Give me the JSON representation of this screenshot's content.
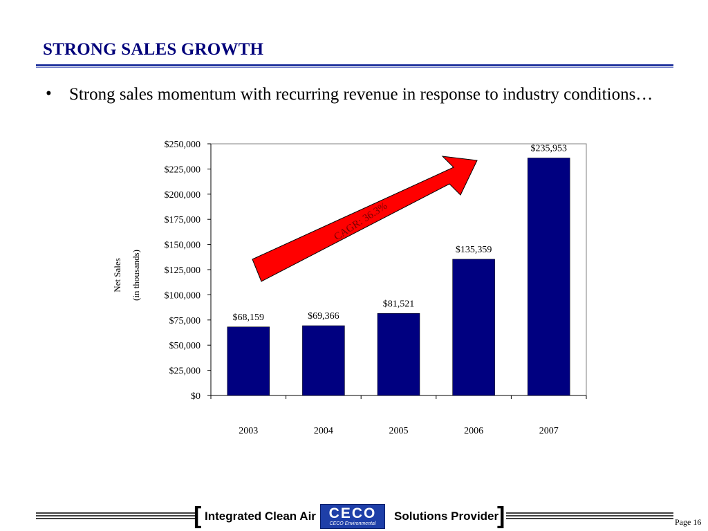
{
  "slide": {
    "title": "STRONG SALES GROWTH",
    "bullet": "Strong sales momentum with recurring revenue in response to industry conditions…"
  },
  "chart_data": {
    "type": "bar",
    "categories": [
      "2003",
      "2004",
      "2005",
      "2006",
      "2007"
    ],
    "values": [
      68159,
      69366,
      81521,
      135359,
      235953
    ],
    "data_labels": [
      "$68,159",
      "$69,366",
      "$81,521",
      "$135,359",
      "$235,953"
    ],
    "ylabel_line1": "Net Sales",
    "ylabel_line2": "(in thousands)",
    "xlabel": "",
    "ylim": [
      0,
      250000
    ],
    "yticks": [
      0,
      25000,
      50000,
      75000,
      100000,
      125000,
      150000,
      175000,
      200000,
      225000,
      250000
    ],
    "ytick_labels": [
      "$0",
      "$25,000",
      "$50,000",
      "$75,000",
      "$100,000",
      "$125,000",
      "$150,000",
      "$175,000",
      "$200,000",
      "$225,000",
      "$250,000"
    ],
    "grid": false,
    "bar_color": "#000080",
    "annotation": {
      "text": "CAGR: 36.3%",
      "shape": "arrow",
      "fill": "#ff0000",
      "text_color": "#7a0000"
    }
  },
  "footer": {
    "left_text": "Integrated Clean Air",
    "right_text": "Solutions Provider",
    "logo_word": "CECO",
    "logo_sub": "CECO Environmental",
    "page": "Page 16"
  }
}
